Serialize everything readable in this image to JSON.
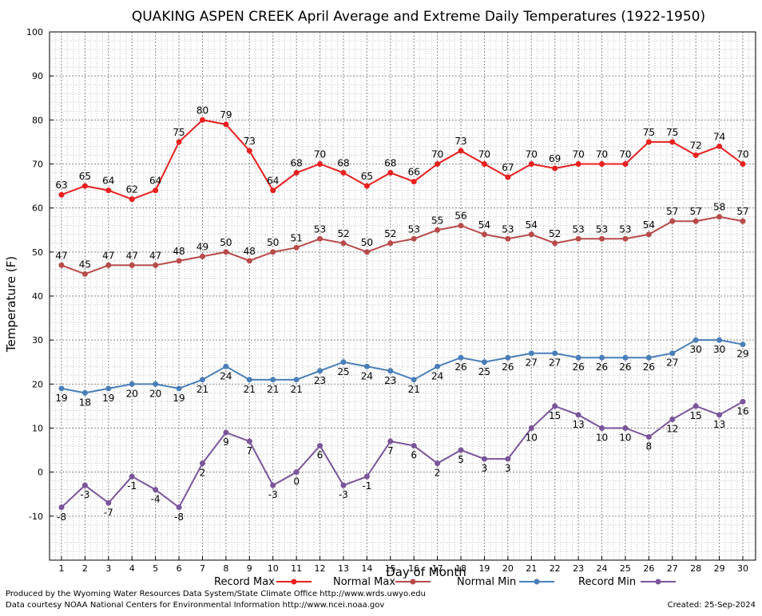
{
  "chart_data": {
    "type": "line",
    "title": "QUAKING ASPEN CREEK April Average and Extreme Daily Temperatures (1922-1950)",
    "xlabel": "Day of Month",
    "ylabel": "Temperature (F)",
    "ylim": [
      -20,
      100
    ],
    "yticks": [
      -10,
      0,
      10,
      20,
      30,
      40,
      50,
      60,
      70,
      80,
      90,
      100
    ],
    "x": [
      1,
      2,
      3,
      4,
      5,
      6,
      7,
      8,
      9,
      10,
      11,
      12,
      13,
      14,
      15,
      16,
      17,
      18,
      19,
      20,
      21,
      22,
      23,
      24,
      25,
      26,
      27,
      28,
      29,
      30
    ],
    "grid": true,
    "legend_position": "bottom",
    "series": [
      {
        "name": "Record Max",
        "color": "#e8201f",
        "label_position": "above",
        "values": [
          63,
          65,
          64,
          62,
          64,
          75,
          80,
          79,
          73,
          64,
          68,
          70,
          68,
          65,
          68,
          66,
          70,
          73,
          70,
          67,
          70,
          69,
          70,
          70,
          70,
          75,
          75,
          72,
          74,
          70
        ]
      },
      {
        "name": "Normal Max",
        "color": "#b84a4a",
        "label_position": "above",
        "values": [
          47,
          45,
          47,
          47,
          47,
          48,
          49,
          50,
          48,
          50,
          51,
          53,
          52,
          50,
          52,
          53,
          55,
          56,
          54,
          53,
          54,
          52,
          53,
          53,
          53,
          54,
          57,
          57,
          58,
          57
        ]
      },
      {
        "name": "Normal Min",
        "color": "#4a7eb8",
        "label_position": "below",
        "values": [
          19,
          18,
          19,
          20,
          20,
          19,
          21,
          24,
          21,
          21,
          21,
          23,
          25,
          24,
          23,
          21,
          24,
          26,
          25,
          26,
          27,
          27,
          26,
          26,
          26,
          26,
          27,
          30,
          30,
          29
        ]
      },
      {
        "name": "Record Min",
        "color": "#7a559a",
        "label_position": "below",
        "values": [
          -8,
          -3,
          -7,
          -1,
          -4,
          -8,
          2,
          9,
          7,
          -3,
          0,
          6,
          -3,
          -1,
          7,
          6,
          2,
          5,
          3,
          3,
          10,
          15,
          13,
          10,
          10,
          8,
          12,
          15,
          13,
          16
        ]
      }
    ]
  },
  "footer": {
    "produced_by": "Produced by the Wyoming Water Resources Data System/State Climate Office http://www.wrds.uwyo.edu",
    "data_courtesy": "Data courtesy NOAA National Centers for Environmental Information http://www.ncei.noaa.gov",
    "created": "Created:  25-Sep-2024"
  }
}
